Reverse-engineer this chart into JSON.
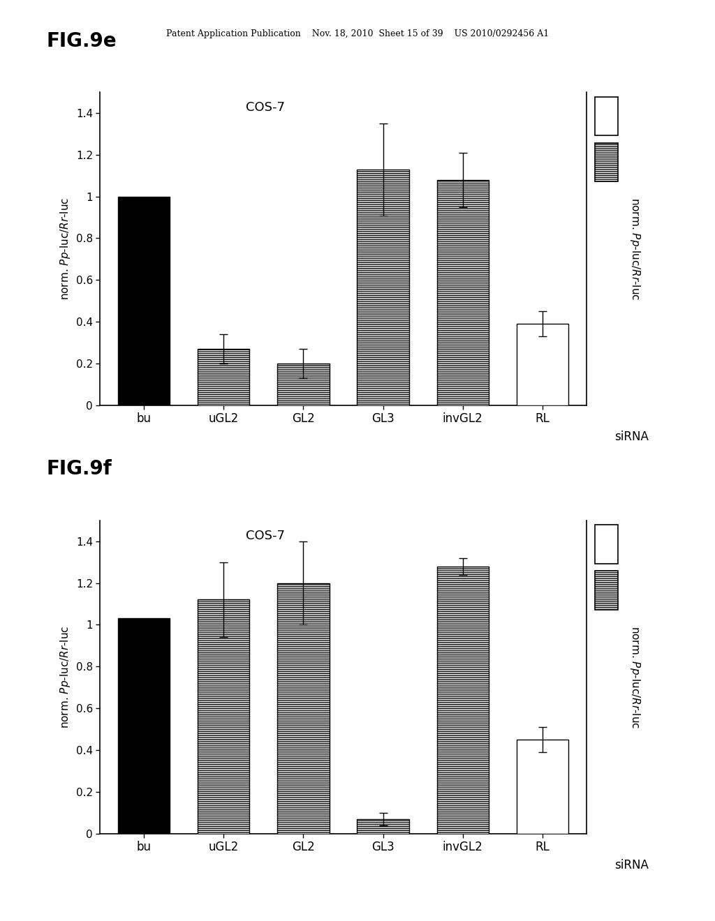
{
  "fig9e": {
    "fig_label": "FIG.9e",
    "subtitle": "COS-7",
    "categories": [
      "bu",
      "uGL2",
      "GL2",
      "GL3",
      "invGL2",
      "RL"
    ],
    "values": [
      1.0,
      0.27,
      0.2,
      1.13,
      1.08,
      0.39
    ],
    "errors": [
      0.0,
      0.07,
      0.07,
      0.22,
      0.13,
      0.06
    ],
    "bar_styles": [
      "black",
      "hatch",
      "hatch",
      "hatch",
      "hatch",
      "white"
    ],
    "ylim": [
      0,
      1.5
    ],
    "yticks": [
      0,
      0.2,
      0.4,
      0.6,
      0.8,
      1.0,
      1.2,
      1.4
    ]
  },
  "fig9f": {
    "fig_label": "FIG.9f",
    "subtitle": "COS-7",
    "categories": [
      "bu",
      "uGL2",
      "GL2",
      "GL3",
      "invGL2",
      "RL"
    ],
    "values": [
      1.03,
      1.12,
      1.2,
      0.07,
      1.28,
      0.45
    ],
    "errors": [
      0.0,
      0.18,
      0.2,
      0.03,
      0.04,
      0.06
    ],
    "bar_styles": [
      "black",
      "hatch",
      "hatch",
      "hatch",
      "hatch",
      "white"
    ],
    "ylim": [
      0,
      1.5
    ],
    "yticks": [
      0,
      0.2,
      0.4,
      0.6,
      0.8,
      1.0,
      1.2,
      1.4
    ]
  },
  "header_text": "Patent Application Publication    Nov. 18, 2010  Sheet 15 of 39    US 2010/0292456 A1",
  "ylabel": "norm. $\\it{Pp}$-luc/$\\it{Rr}$-luc",
  "xlabel": "siRNA",
  "background_color": "#ffffff"
}
